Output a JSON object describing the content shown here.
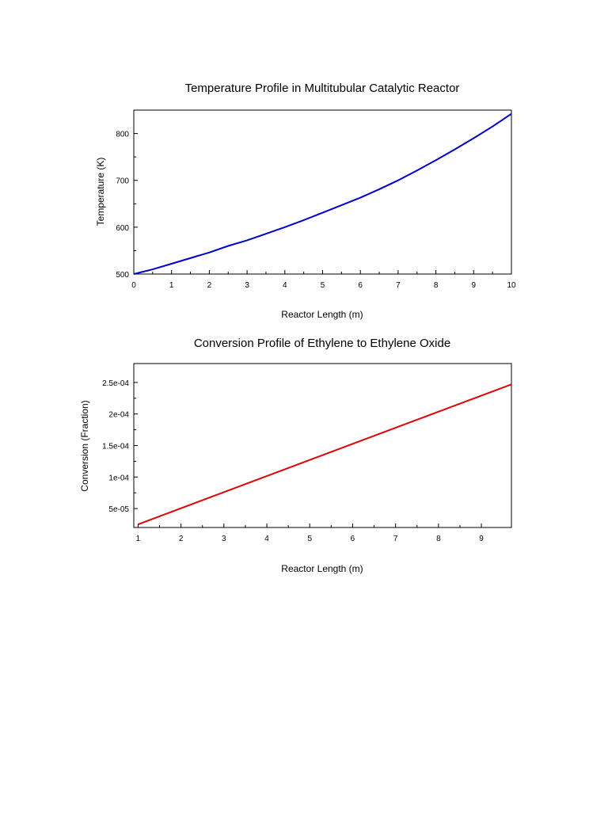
{
  "chart_data": [
    {
      "type": "line",
      "title": "Temperature Profile in Multitubular Catalytic Reactor",
      "xlabel": "Reactor Length (m)",
      "ylabel": "Temperature (K)",
      "xlim": [
        0,
        10
      ],
      "ylim": [
        500,
        850
      ],
      "xticks": [
        0,
        1,
        2,
        3,
        4,
        5,
        6,
        7,
        8,
        9,
        10
      ],
      "xtick_labels": [
        "0",
        "1",
        "2",
        "3",
        "4",
        "5",
        "6",
        "7",
        "8",
        "9",
        "10"
      ],
      "yticks": [
        500,
        600,
        700,
        800
      ],
      "ytick_labels": [
        "500",
        "600",
        "700",
        "800"
      ],
      "grid": false,
      "legend": "none",
      "series": [
        {
          "color": "#0000cc",
          "x": [
            0,
            0.5,
            1,
            1.5,
            2,
            2.5,
            3,
            3.5,
            4,
            4.5,
            5,
            5.5,
            6,
            6.5,
            7,
            7.5,
            8,
            8.5,
            9,
            9.5,
            10
          ],
          "y": [
            500,
            510,
            522,
            534,
            546,
            560,
            572,
            586,
            600,
            615,
            631,
            647,
            663,
            681,
            700,
            721,
            743,
            766,
            790,
            815,
            842
          ]
        }
      ]
    },
    {
      "type": "line",
      "title": "Conversion Profile of Ethylene to Ethylene Oxide",
      "xlabel": "Reactor Length (m)",
      "ylabel": "Conversion (Fraction)",
      "xlim": [
        0.9,
        9.7
      ],
      "ylim": [
        2e-05,
        0.00028
      ],
      "xticks": [
        1,
        2,
        3,
        4,
        5,
        6,
        7,
        8,
        9
      ],
      "xtick_labels": [
        "1",
        "2",
        "3",
        "4",
        "5",
        "6",
        "7",
        "8",
        "9"
      ],
      "yticks": [
        5e-05,
        0.0001,
        0.00015,
        0.0002,
        0.00025
      ],
      "ytick_labels": [
        "5e-05",
        "1e-04",
        "1.5e-04",
        "2e-04",
        "2.5e-04"
      ],
      "grid": false,
      "legend": "none",
      "series": [
        {
          "color": "#dd0000",
          "x": [
            1,
            9.7
          ],
          "y": [
            2.5e-05,
            0.000247
          ]
        }
      ]
    }
  ]
}
